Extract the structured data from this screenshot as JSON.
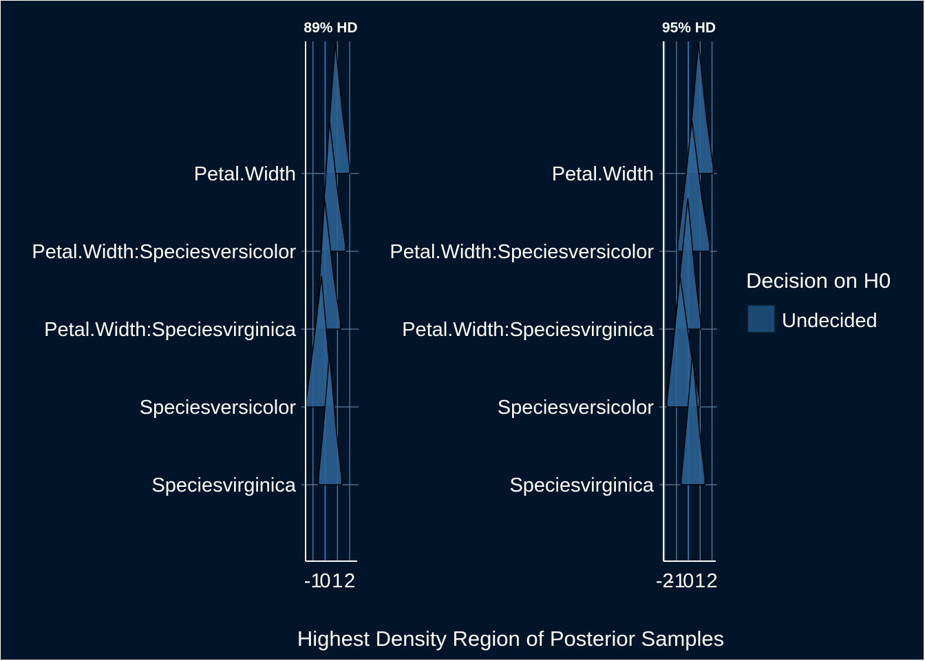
{
  "chart_data": {
    "type": "ridgeline",
    "x_axis_title": "Highest Density Region of Posterior Samples",
    "legend": {
      "title": "Decision on H0",
      "placement": "right",
      "items": [
        {
          "label": "Undecided",
          "color": "#1a4a73"
        }
      ]
    },
    "colors": {
      "background": "#001529",
      "fill": "#2c6395",
      "grid": "#5a7e9e",
      "zero_line": "#2f6fb3",
      "text": "#ffffff"
    },
    "parameters": [
      "Petal.Width",
      "Petal.Width:Speciesversicolor",
      "Petal.Width:Speciesvirginica",
      "Speciesversicolor",
      "Speciesvirginica"
    ],
    "panels": [
      {
        "title": "89% HD",
        "xlim": [
          -1.6,
          2.5
        ],
        "x_ticks": [
          -1,
          0,
          1,
          2
        ],
        "x_tick_labels": [
          "-1",
          "0",
          "1",
          "2"
        ],
        "series": [
          {
            "name": "Petal.Width",
            "hdi": [
              0.05,
              2.0
            ],
            "mode": 0.82
          },
          {
            "name": "Petal.Width:Speciesversicolor",
            "hdi": [
              -0.35,
              1.65
            ],
            "mode": 0.35
          },
          {
            "name": "Petal.Width:Speciesvirginica",
            "hdi": [
              -0.7,
              1.25
            ],
            "mode": -0.05
          },
          {
            "name": "Speciesversicolor",
            "hdi": [
              -1.55,
              0.7
            ],
            "mode": -0.3
          },
          {
            "name": "Speciesvirginica",
            "hdi": [
              -0.55,
              1.35
            ],
            "mode": 0.35
          }
        ]
      },
      {
        "title": "95% HD",
        "xlim": [
          -2.1,
          2.2
        ],
        "x_ticks": [
          -2,
          -1,
          0,
          1,
          2
        ],
        "x_tick_labels": [
          "-2",
          "-1",
          "0",
          "1",
          "2"
        ],
        "series": [
          {
            "name": "Petal.Width",
            "hdi": [
              -0.1,
              2.1
            ],
            "mode": 0.85
          },
          {
            "name": "Petal.Width:Speciesversicolor",
            "hdi": [
              -0.9,
              1.8
            ],
            "mode": 0.3
          },
          {
            "name": "Petal.Width:Speciesvirginica",
            "hdi": [
              -1.15,
              1.05
            ],
            "mode": -0.05
          },
          {
            "name": "Speciesversicolor",
            "hdi": [
              -1.8,
              0.95
            ],
            "mode": -0.7
          },
          {
            "name": "Speciesvirginica",
            "hdi": [
              -0.6,
              1.4
            ],
            "mode": 0.35
          }
        ]
      }
    ]
  }
}
